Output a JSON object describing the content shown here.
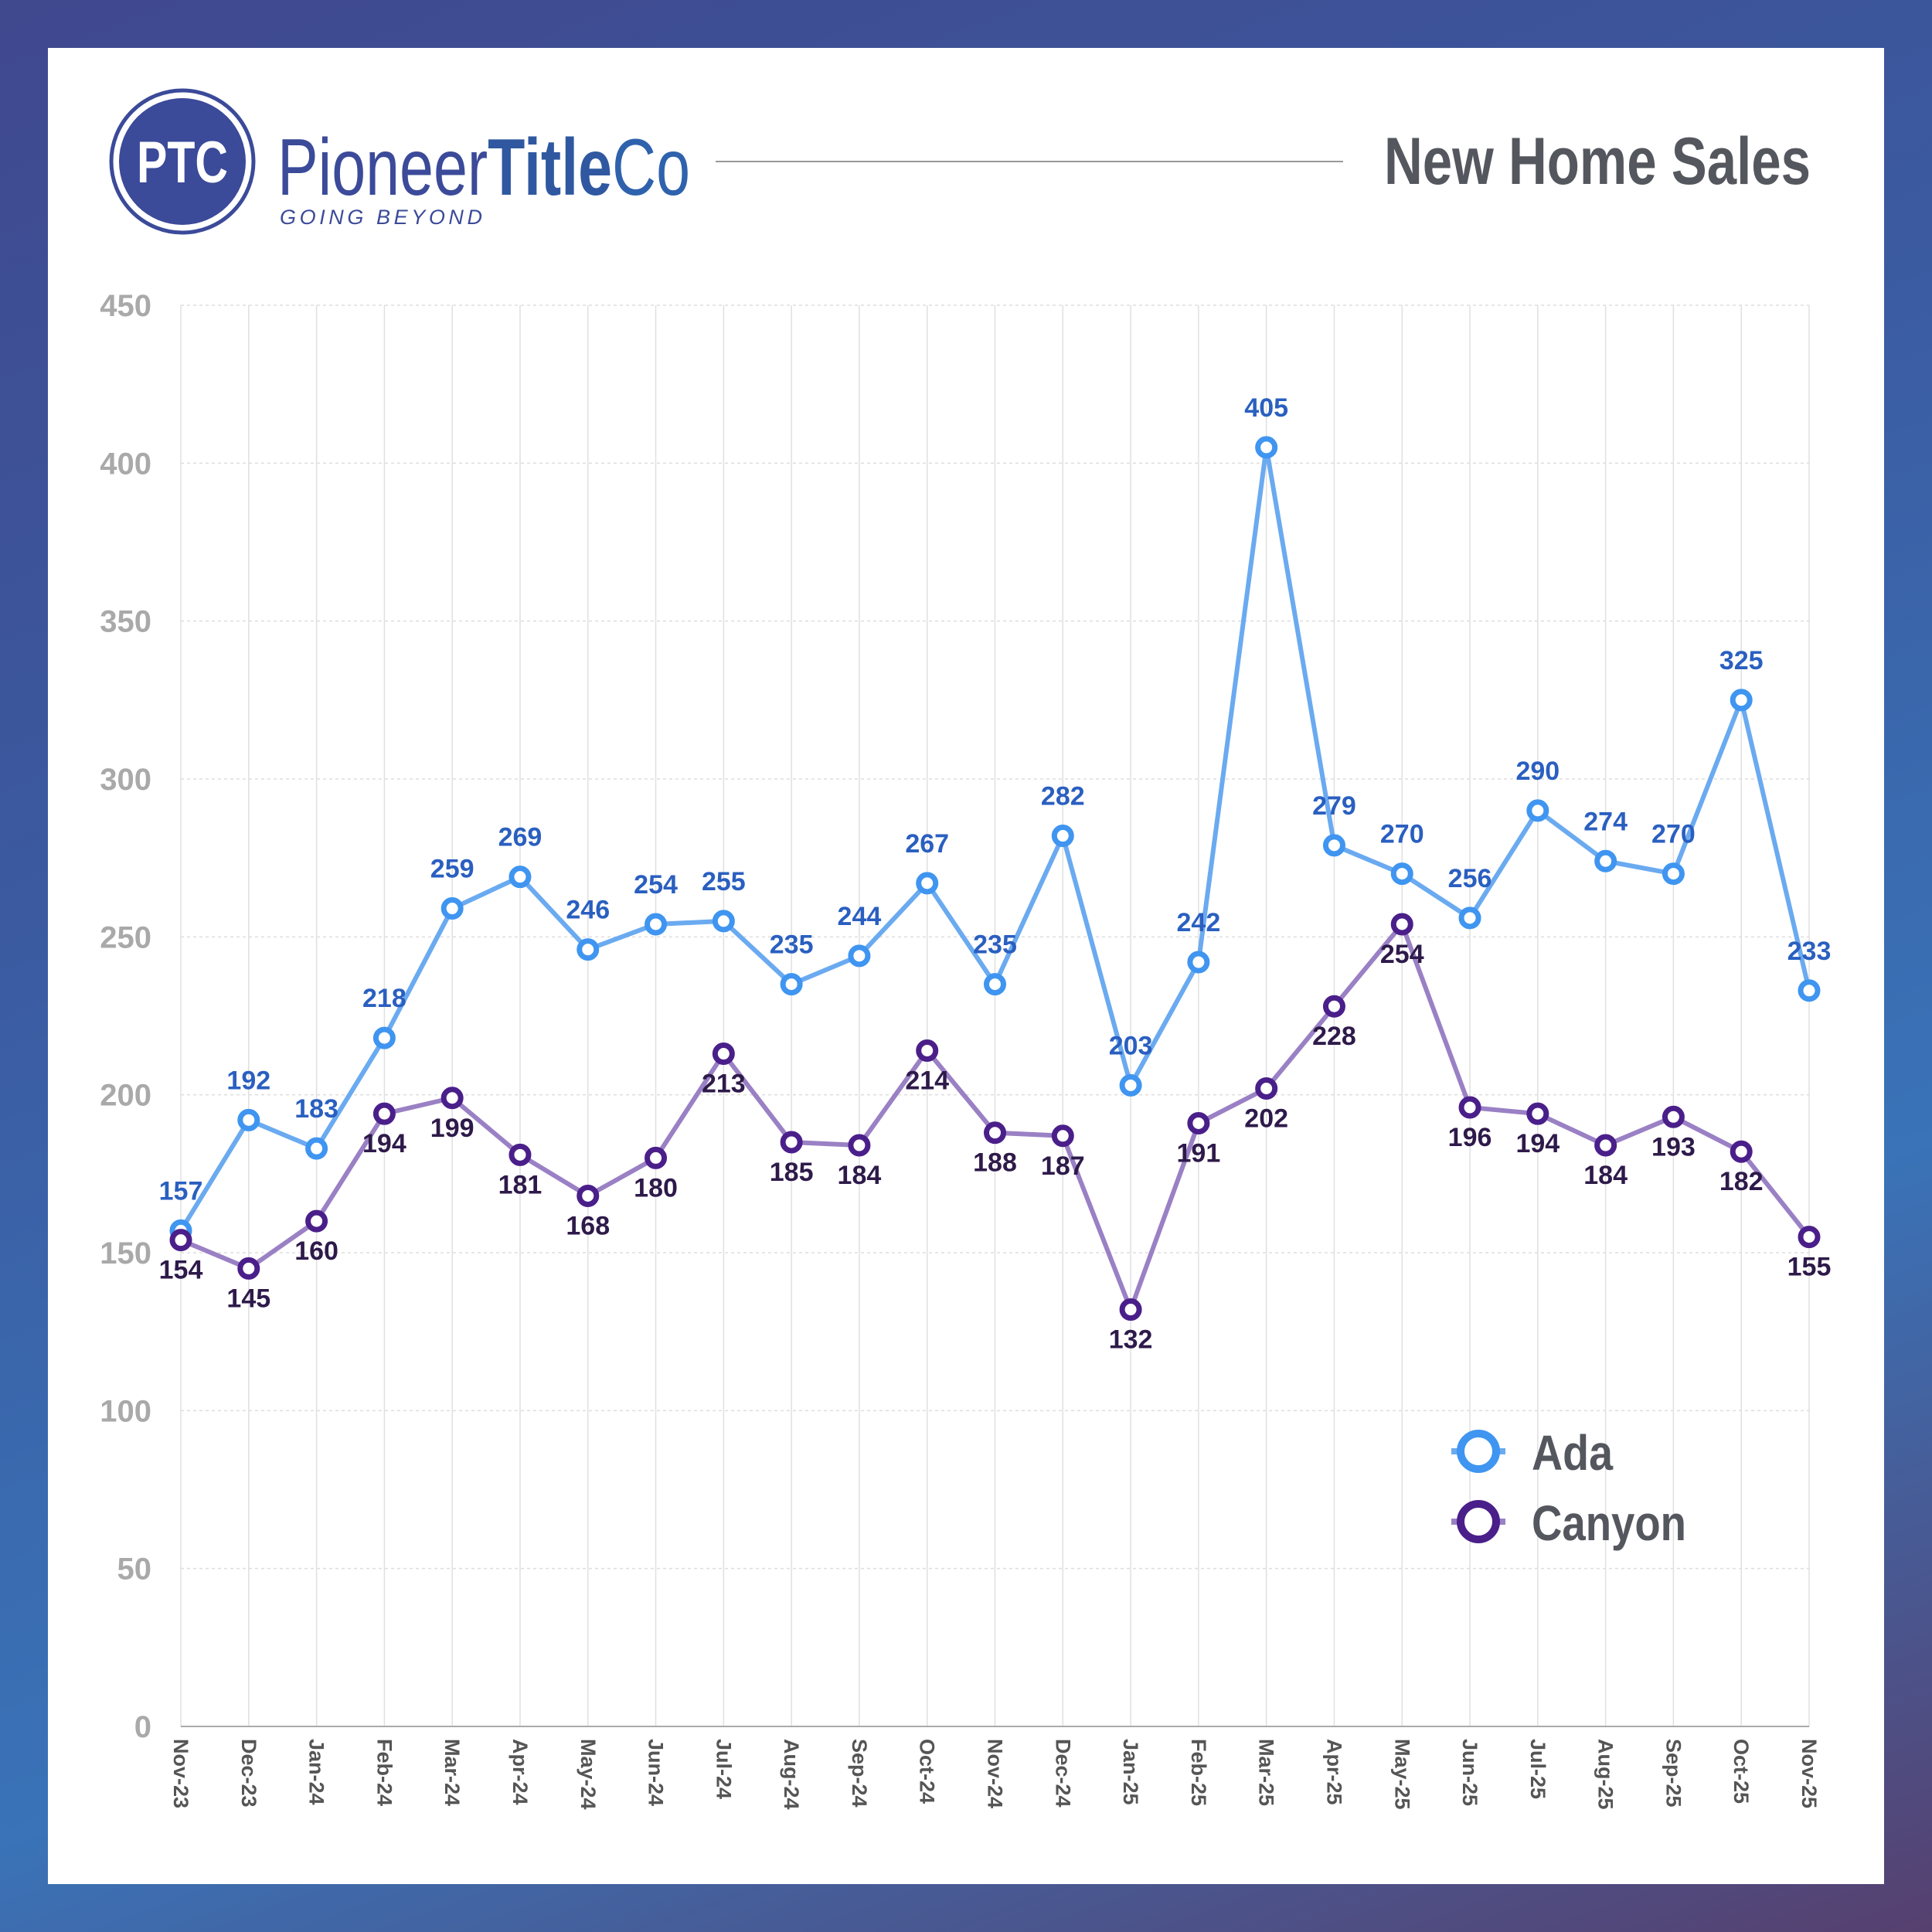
{
  "header": {
    "logo_monogram": "PTC",
    "brand_regular": "Pioneer",
    "brand_bold": "Title",
    "brand_suffix": "Co",
    "tagline": "GOING BEYOND",
    "title": "New Home Sales"
  },
  "colors": {
    "ada": "#3f95f0",
    "ada_line": "#6aaaf0",
    "ada_label": "#2a5fc0",
    "canyon": "#4a1f8a",
    "canyon_line": "#9a80c4",
    "canyon_label": "#2e1a4a",
    "brand": "#3b4a99"
  },
  "chart_data": {
    "type": "line",
    "title": "New Home Sales",
    "xlabel": "",
    "ylabel": "",
    "ylim": [
      0,
      450
    ],
    "yticks": [
      0,
      50,
      100,
      150,
      200,
      250,
      300,
      350,
      400,
      450
    ],
    "grid": true,
    "legend_position": "bottom-right",
    "categories": [
      "Nov-23",
      "Dec-23",
      "Jan-24",
      "Feb-24",
      "Mar-24",
      "Apr-24",
      "May-24",
      "Jun-24",
      "Jul-24",
      "Aug-24",
      "Sep-24",
      "Oct-24",
      "Nov-24",
      "Dec-24",
      "Jan-25",
      "Feb-25",
      "Mar-25",
      "Apr-25",
      "May-25",
      "Jun-25",
      "Jul-25",
      "Aug-25",
      "Sep-25",
      "Oct-25",
      "Nov-25"
    ],
    "series": [
      {
        "name": "Ada",
        "values": [
          157,
          192,
          183,
          218,
          259,
          269,
          246,
          254,
          255,
          235,
          244,
          267,
          235,
          282,
          203,
          242,
          405,
          279,
          270,
          256,
          290,
          274,
          270,
          325,
          233
        ]
      },
      {
        "name": "Canyon",
        "values": [
          154,
          145,
          160,
          194,
          199,
          181,
          168,
          180,
          213,
          185,
          184,
          214,
          188,
          187,
          132,
          191,
          202,
          228,
          254,
          196,
          194,
          184,
          193,
          182,
          155
        ]
      }
    ]
  }
}
